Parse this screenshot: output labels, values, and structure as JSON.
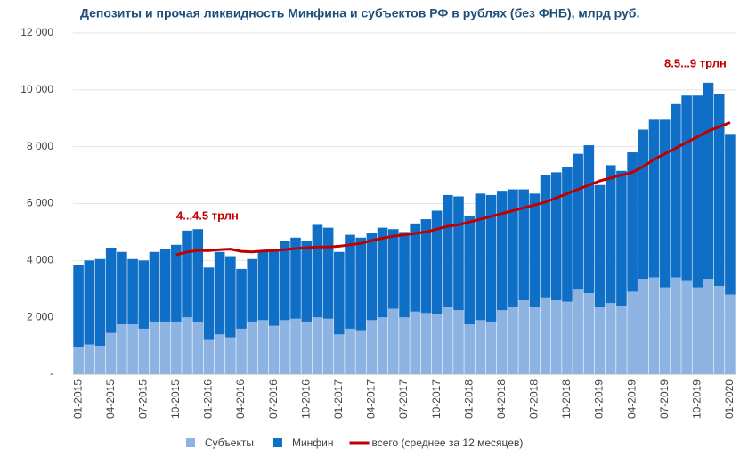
{
  "chart_data": {
    "type": "bar",
    "stacked": true,
    "title": "Депозиты и прочая ликвидность Минфина и субъектов РФ в рублях (без ФНБ), млрд руб.",
    "categories": [
      "01-2015",
      null,
      null,
      "04-2015",
      null,
      null,
      "07-2015",
      null,
      null,
      "10-2015",
      null,
      null,
      "01-2016",
      null,
      null,
      "04-2016",
      null,
      null,
      "07-2016",
      null,
      null,
      "10-2016",
      null,
      null,
      "01-2017",
      null,
      null,
      "04-2017",
      null,
      null,
      "07-2017",
      null,
      null,
      "10-2017",
      null,
      null,
      "01-2018",
      null,
      null,
      "04-2018",
      null,
      null,
      "07-2018",
      null,
      null,
      "10-2018",
      null,
      null,
      "01-2019",
      null,
      null,
      "04-2019",
      null,
      null,
      "07-2019",
      null,
      null,
      "10-2019",
      null,
      null,
      "01-2020"
    ],
    "series": [
      {
        "name": "Субъекты",
        "color": "#8db3e2",
        "values": [
          950,
          1050,
          1000,
          1450,
          1750,
          1750,
          1600,
          1850,
          1850,
          1850,
          2000,
          1850,
          1200,
          1400,
          1300,
          1600,
          1850,
          1900,
          1700,
          1900,
          1950,
          1850,
          2000,
          1950,
          1400,
          1600,
          1550,
          1900,
          2000,
          2300,
          2000,
          2200,
          2150,
          2100,
          2350,
          2250,
          1750,
          1900,
          1850,
          2250,
          2350,
          2600,
          2350,
          2700,
          2600,
          2550,
          3000,
          2850,
          2350,
          2500,
          2400,
          2900,
          3350,
          3400,
          3050,
          3400,
          3300,
          3050,
          3350,
          3100,
          2800
        ]
      },
      {
        "name": "Минфин",
        "color": "#0f6fc6",
        "values": [
          2900,
          2950,
          3050,
          3000,
          2550,
          2300,
          2400,
          2450,
          2550,
          2700,
          3050,
          3250,
          2550,
          2900,
          2850,
          2100,
          2200,
          2400,
          2650,
          2800,
          2850,
          2850,
          3250,
          3200,
          2900,
          3300,
          3250,
          3050,
          3150,
          2800,
          3000,
          3100,
          3300,
          3650,
          3950,
          4000,
          3800,
          4450,
          4450,
          4200,
          4150,
          3900,
          4000,
          4300,
          4500,
          4750,
          4750,
          5200,
          4300,
          4850,
          4750,
          4900,
          5250,
          5550,
          5900,
          6100,
          6500,
          6750,
          6900,
          6750,
          5650
        ]
      },
      {
        "name": "всего (среднее за 12 месяцев)",
        "color": "#c00000",
        "type": "line",
        "values": [
          null,
          null,
          null,
          null,
          null,
          null,
          null,
          null,
          null,
          4200,
          4300,
          4350,
          4350,
          4380,
          4400,
          4320,
          4300,
          4330,
          4350,
          4380,
          4420,
          4450,
          4470,
          4470,
          4500,
          4550,
          4600,
          4700,
          4780,
          4850,
          4900,
          4950,
          5000,
          5100,
          5200,
          5250,
          5350,
          5450,
          5550,
          5650,
          5750,
          5850,
          5950,
          6050,
          6200,
          6350,
          6500,
          6650,
          6800,
          6900,
          7000,
          7100,
          7300,
          7550,
          7750,
          7950,
          8150,
          8350,
          8550,
          8700,
          8850
        ]
      }
    ],
    "ylim": [
      0,
      12000
    ],
    "yticks": [
      {
        "value": 0,
        "label": "-"
      },
      {
        "value": 2000,
        "label": "2 000"
      },
      {
        "value": 4000,
        "label": "4 000"
      },
      {
        "value": 6000,
        "label": "6 000"
      },
      {
        "value": 8000,
        "label": "8 000"
      },
      {
        "value": 10000,
        "label": "10 000"
      },
      {
        "value": 12000,
        "label": "12 000"
      }
    ],
    "grid": true,
    "legend": "bottom",
    "annotations": [
      "4...4.5 трлн",
      "8.5...9 трлн"
    ]
  }
}
